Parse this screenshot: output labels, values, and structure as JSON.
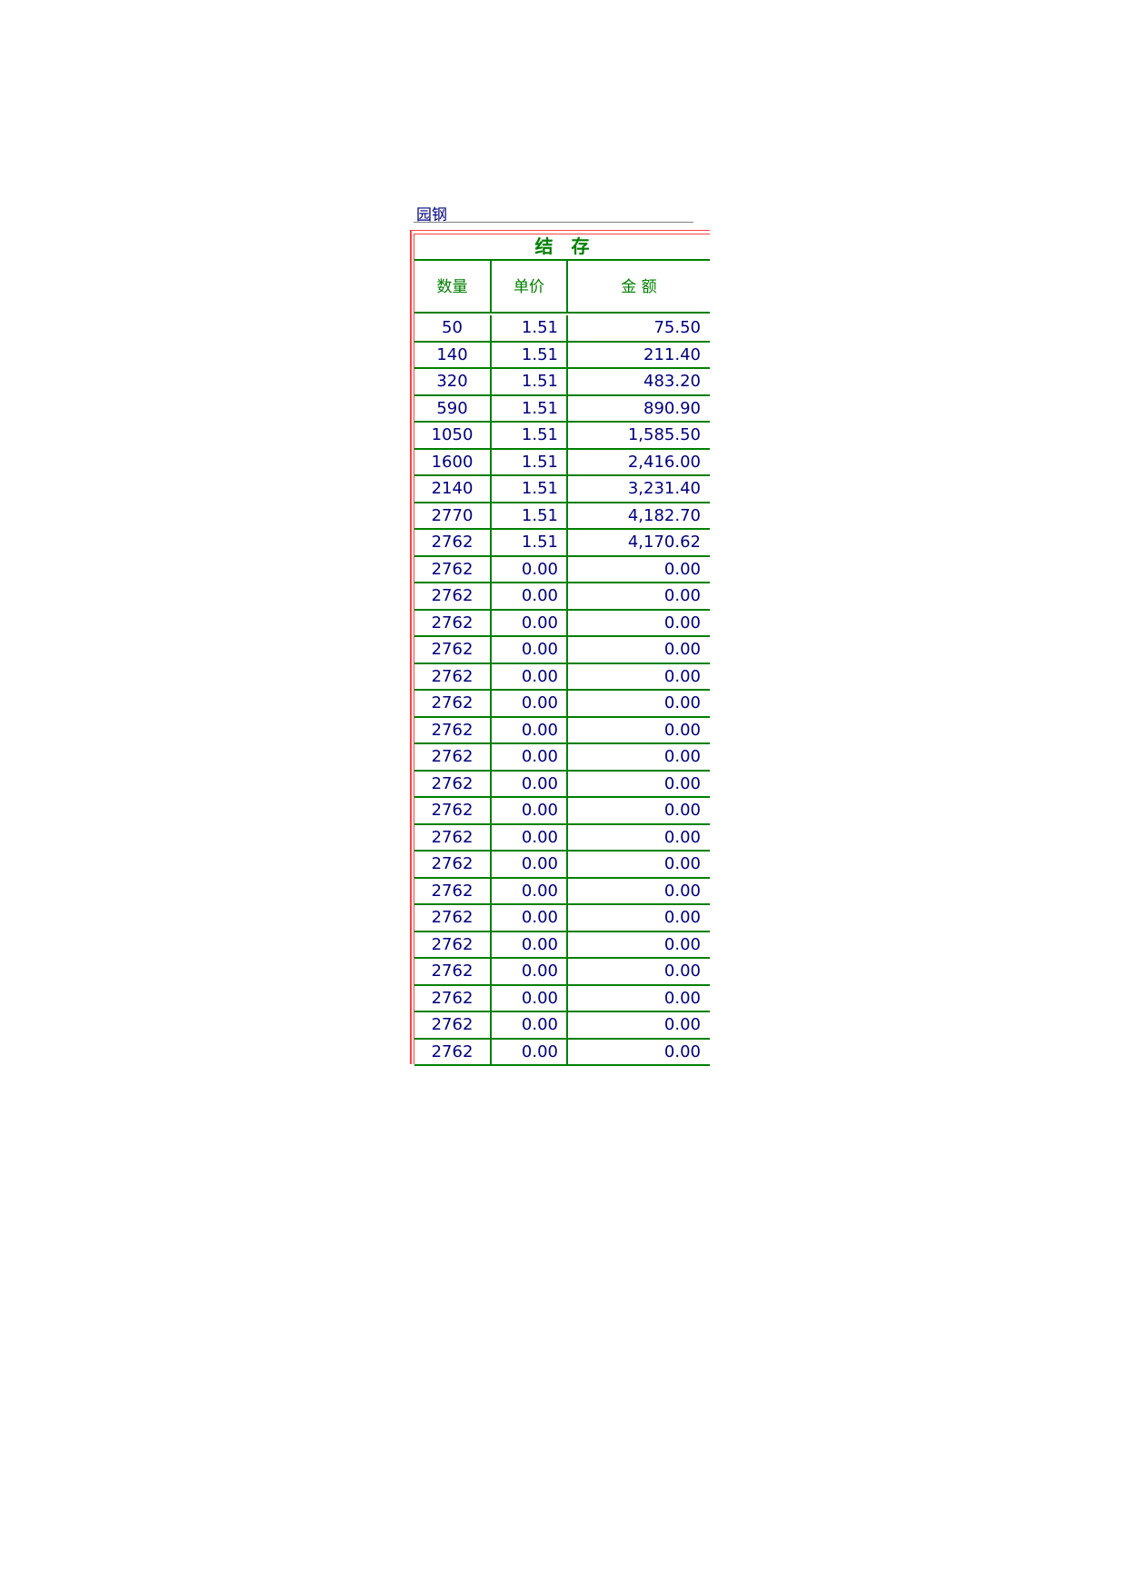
{
  "title": "园钢",
  "section_header": "结　存",
  "columns": [
    "数量",
    "单价",
    "金 额"
  ],
  "colors": {
    "border_green": "#008000",
    "text_blue": "#000080",
    "border_red": "#ff4040"
  },
  "rows": [
    [
      "50",
      "1.51",
      "75.50"
    ],
    [
      "140",
      "1.51",
      "211.40"
    ],
    [
      "320",
      "1.51",
      "483.20"
    ],
    [
      "590",
      "1.51",
      "890.90"
    ],
    [
      "1050",
      "1.51",
      "1,585.50"
    ],
    [
      "1600",
      "1.51",
      "2,416.00"
    ],
    [
      "2140",
      "1.51",
      "3,231.40"
    ],
    [
      "2770",
      "1.51",
      "4,182.70"
    ],
    [
      "2762",
      "1.51",
      "4,170.62"
    ],
    [
      "2762",
      "0.00",
      "0.00"
    ],
    [
      "2762",
      "0.00",
      "0.00"
    ],
    [
      "2762",
      "0.00",
      "0.00"
    ],
    [
      "2762",
      "0.00",
      "0.00"
    ],
    [
      "2762",
      "0.00",
      "0.00"
    ],
    [
      "2762",
      "0.00",
      "0.00"
    ],
    [
      "2762",
      "0.00",
      "0.00"
    ],
    [
      "2762",
      "0.00",
      "0.00"
    ],
    [
      "2762",
      "0.00",
      "0.00"
    ],
    [
      "2762",
      "0.00",
      "0.00"
    ],
    [
      "2762",
      "0.00",
      "0.00"
    ],
    [
      "2762",
      "0.00",
      "0.00"
    ],
    [
      "2762",
      "0.00",
      "0.00"
    ],
    [
      "2762",
      "0.00",
      "0.00"
    ],
    [
      "2762",
      "0.00",
      "0.00"
    ],
    [
      "2762",
      "0.00",
      "0.00"
    ],
    [
      "2762",
      "0.00",
      "0.00"
    ],
    [
      "2762",
      "0.00",
      "0.00"
    ],
    [
      "2762",
      "0.00",
      "0.00"
    ]
  ]
}
